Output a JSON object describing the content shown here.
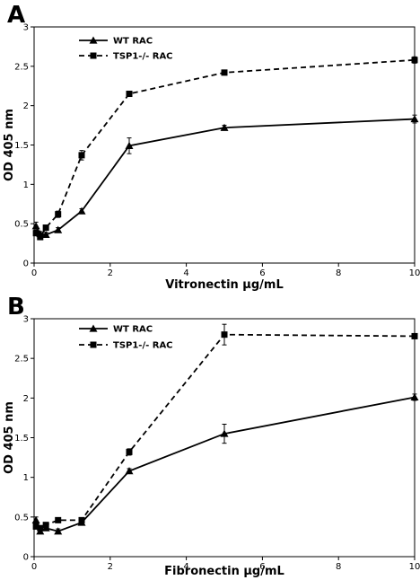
{
  "chart_data": [
    {
      "type": "line",
      "panel": "A",
      "xlabel": "Vitronectin  µg/mL",
      "ylabel": "OD 405 nm",
      "xlim": [
        0,
        10
      ],
      "ylim": [
        0,
        3
      ],
      "xticks": [
        0,
        2,
        4,
        6,
        8,
        10
      ],
      "yticks": [
        0,
        0.5,
        1,
        1.5,
        2,
        2.5,
        3
      ],
      "ytick_labels": [
        "0",
        "0.5",
        "1",
        "1.5",
        "2",
        "2.5",
        "3"
      ],
      "grid": false,
      "legend": "top-left",
      "series": [
        {
          "name": "WT RAC",
          "marker": "triangle",
          "line": "solid",
          "x": [
            0.05,
            0.16,
            0.31,
            0.63,
            1.25,
            2.5,
            5,
            10
          ],
          "y": [
            0.47,
            0.37,
            0.36,
            0.42,
            0.66,
            1.49,
            1.72,
            1.83
          ],
          "err": [
            0.05,
            0.03,
            0.03,
            0.03,
            0.03,
            0.1,
            0.03,
            0.05
          ]
        },
        {
          "name": "TSP1-/- RAC",
          "marker": "square",
          "line": "dashed",
          "x": [
            0.05,
            0.16,
            0.31,
            0.63,
            1.25,
            2.5,
            5,
            10
          ],
          "y": [
            0.38,
            0.33,
            0.45,
            0.62,
            1.37,
            2.15,
            2.42,
            2.58
          ],
          "err": [
            0.03,
            0.03,
            0.03,
            0.04,
            0.06,
            0.03,
            0.03,
            0.04
          ]
        }
      ]
    },
    {
      "type": "line",
      "panel": "B",
      "xlabel": "Fibronectin  µg/mL",
      "ylabel": "OD 405 nm",
      "xlim": [
        0,
        10
      ],
      "ylim": [
        0,
        3
      ],
      "xticks": [
        0,
        2,
        4,
        6,
        8,
        10
      ],
      "yticks": [
        0,
        0.5,
        1,
        1.5,
        2,
        2.5,
        3
      ],
      "ytick_labels": [
        "0",
        "0.5",
        "1",
        "1.5",
        "2",
        "2.5",
        "3"
      ],
      "grid": false,
      "legend": "top-left",
      "series": [
        {
          "name": "WT RAC",
          "marker": "triangle",
          "line": "solid",
          "x": [
            0.05,
            0.16,
            0.31,
            0.63,
            1.25,
            2.5,
            5,
            10
          ],
          "y": [
            0.46,
            0.32,
            0.36,
            0.32,
            0.43,
            1.08,
            1.55,
            2.01
          ],
          "err": [
            0.04,
            0.03,
            0.03,
            0.03,
            0.03,
            0.03,
            0.12,
            0.04
          ]
        },
        {
          "name": "TSP1-/- RAC",
          "marker": "square",
          "line": "dashed",
          "x": [
            0.05,
            0.16,
            0.31,
            0.63,
            1.25,
            2.5,
            5,
            10
          ],
          "y": [
            0.38,
            0.36,
            0.4,
            0.46,
            0.46,
            1.32,
            2.8,
            2.78
          ],
          "err": [
            0.03,
            0.03,
            0.03,
            0.03,
            0.03,
            0.04,
            0.13,
            0.03
          ]
        }
      ]
    }
  ]
}
